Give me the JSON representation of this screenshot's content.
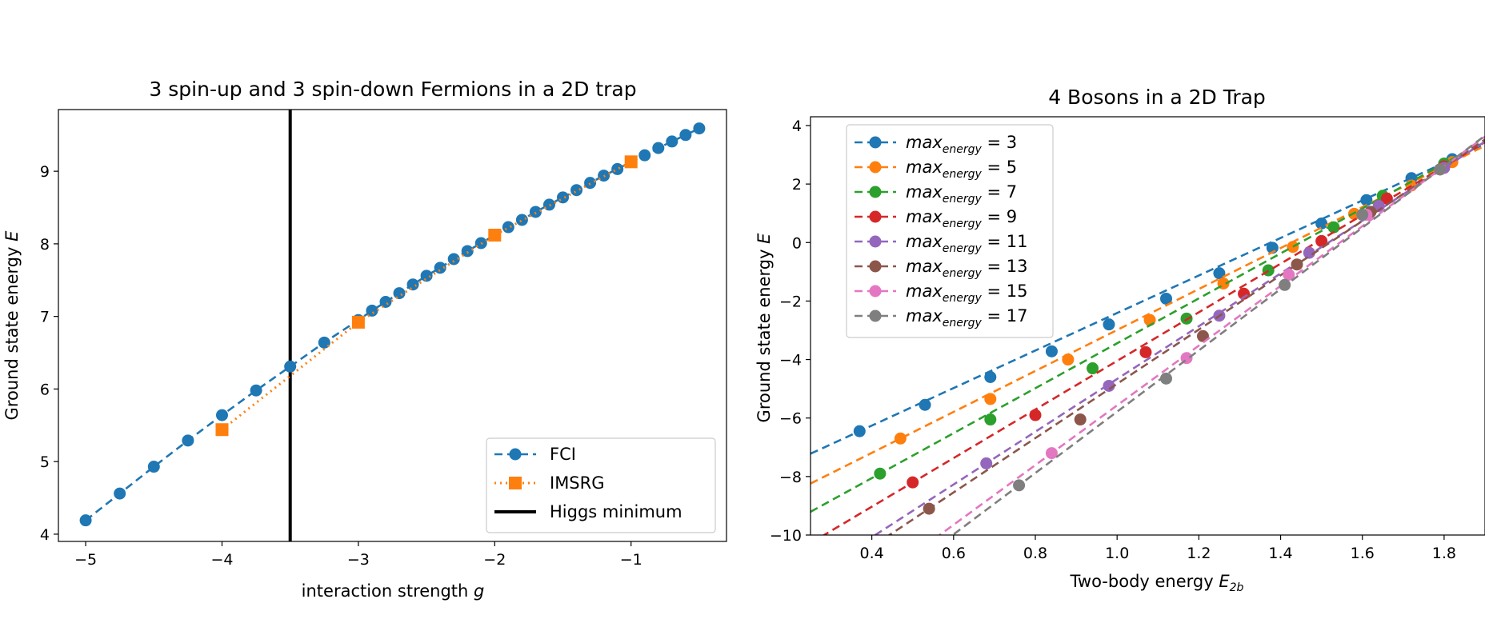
{
  "chart_data": [
    {
      "type": "line",
      "title": "3 spin-up and 3 spin-down Fermions in a 2D trap",
      "xlabel": "interaction strength ",
      "xlabel_var": "g",
      "ylabel": "Ground state energy ",
      "ylabel_var": "E",
      "xlim": [
        -5.2,
        -0.3
      ],
      "ylim": [
        3.9,
        9.85
      ],
      "xticks": [
        -5,
        -4,
        -3,
        -2,
        -1
      ],
      "xtick_labels": [
        "−5",
        "−4",
        "−3",
        "−2",
        "−1"
      ],
      "yticks": [
        4,
        5,
        6,
        7,
        8,
        9
      ],
      "ytick_labels": [
        "4",
        "5",
        "6",
        "7",
        "8",
        "9"
      ],
      "grid": false,
      "legend_position": "lower-right",
      "series": [
        {
          "name": "FCI",
          "color": "#1f77b4",
          "linestyle": "dashed",
          "marker": "circle",
          "x": [
            -5.0,
            -4.75,
            -4.5,
            -4.25,
            -4.0,
            -3.75,
            -3.5,
            -3.25,
            -3.0,
            -2.9,
            -2.8,
            -2.7,
            -2.6,
            -2.5,
            -2.4,
            -2.3,
            -2.2,
            -2.1,
            -2.0,
            -1.9,
            -1.8,
            -1.7,
            -1.6,
            -1.5,
            -1.4,
            -1.3,
            -1.2,
            -1.1,
            -1.0,
            -0.9,
            -0.8,
            -0.7,
            -0.6,
            -0.5
          ],
          "y": [
            4.19,
            4.56,
            4.93,
            5.29,
            5.64,
            5.98,
            6.31,
            6.64,
            6.95,
            7.08,
            7.2,
            7.32,
            7.44,
            7.56,
            7.67,
            7.79,
            7.9,
            8.01,
            8.12,
            8.23,
            8.33,
            8.44,
            8.54,
            8.64,
            8.74,
            8.84,
            8.94,
            9.03,
            9.13,
            9.22,
            9.32,
            9.41,
            9.5,
            9.59
          ]
        },
        {
          "name": "IMSRG",
          "color": "#ff7f0e",
          "linestyle": "dotted",
          "marker": "square",
          "x": [
            -4.0,
            -3.0,
            -2.0,
            -1.0
          ],
          "y": [
            5.44,
            6.92,
            8.12,
            9.13
          ]
        }
      ],
      "vline": {
        "name": "Higgs minimum",
        "x": -3.5,
        "color": "#000000"
      }
    },
    {
      "type": "line",
      "title": "4 Bosons in a 2D Trap",
      "xlabel": "Two-body energy ",
      "xlabel_var": "E",
      "xlabel_sub": "2b",
      "ylabel": "Ground state energy ",
      "ylabel_var": "E",
      "xlim": [
        0.25,
        1.9
      ],
      "ylim": [
        -10,
        4.3
      ],
      "xticks": [
        0.4,
        0.6,
        0.8,
        1.0,
        1.2,
        1.4,
        1.6,
        1.8
      ],
      "xtick_labels": [
        "0.4",
        "0.6",
        "0.8",
        "1.0",
        "1.2",
        "1.4",
        "1.6",
        "1.8"
      ],
      "yticks": [
        -10,
        -8,
        -6,
        -4,
        -2,
        0,
        2,
        4
      ],
      "ytick_labels": [
        "−10",
        "−8",
        "−6",
        "−4",
        "−2",
        "0",
        "2",
        "4"
      ],
      "grid": false,
      "legend_position": "upper-left",
      "legend_prefix": "max",
      "legend_sub": "energy",
      "series": [
        {
          "name": "max_energy = 3",
          "label_value": "3",
          "color": "#1f77b4",
          "x": [
            0.37,
            0.53,
            0.69,
            0.84,
            0.98,
            1.12,
            1.25,
            1.38,
            1.5,
            1.61,
            1.72,
            1.82
          ],
          "y": [
            -6.45,
            -5.55,
            -4.6,
            -3.72,
            -2.8,
            -1.92,
            -1.05,
            -0.18,
            0.65,
            1.45,
            2.2,
            2.85
          ]
        },
        {
          "name": "max_energy = 5",
          "label_value": "5",
          "color": "#ff7f0e",
          "x": [
            0.47,
            0.69,
            0.88,
            1.08,
            1.26,
            1.43,
            1.58,
            1.72,
            1.82
          ],
          "y": [
            -6.7,
            -5.35,
            -4.0,
            -2.65,
            -1.4,
            -0.15,
            0.98,
            1.95,
            2.75
          ]
        },
        {
          "name": "max_energy = 7",
          "label_value": "7",
          "color": "#2ca02c",
          "x": [
            0.42,
            0.69,
            0.94,
            1.17,
            1.37,
            1.53,
            1.65,
            1.8
          ],
          "y": [
            -7.9,
            -6.05,
            -4.3,
            -2.6,
            -0.95,
            0.52,
            1.6,
            2.7
          ]
        },
        {
          "name": "max_energy = 9",
          "label_value": "9",
          "color": "#d62728",
          "x": [
            0.5,
            0.8,
            1.07,
            1.31,
            1.5,
            1.66,
            1.8
          ],
          "y": [
            -8.2,
            -5.9,
            -3.75,
            -1.75,
            0.05,
            1.5,
            2.6
          ]
        },
        {
          "name": "max_energy = 11",
          "label_value": "11",
          "color": "#9467bd",
          "x": [
            0.68,
            0.98,
            1.25,
            1.47,
            1.64,
            1.8
          ],
          "y": [
            -7.55,
            -4.9,
            -2.5,
            -0.35,
            1.25,
            2.55
          ]
        },
        {
          "name": "max_energy = 13",
          "label_value": "13",
          "color": "#8c564b",
          "x": [
            0.54,
            0.91,
            1.21,
            1.44,
            1.62,
            1.79
          ],
          "y": [
            -9.1,
            -6.05,
            -3.2,
            -0.75,
            1.05,
            2.5
          ]
        },
        {
          "name": "max_energy = 15",
          "label_value": "15",
          "color": "#e377c2",
          "x": [
            0.84,
            1.17,
            1.42,
            1.61,
            1.79
          ],
          "y": [
            -7.2,
            -3.95,
            -1.1,
            0.95,
            2.5
          ]
        },
        {
          "name": "max_energy = 17",
          "label_value": "17",
          "color": "#7f7f7f",
          "x": [
            0.76,
            1.12,
            1.41,
            1.6,
            1.79
          ],
          "y": [
            -8.3,
            -4.65,
            -1.45,
            0.95,
            2.5
          ]
        }
      ]
    }
  ]
}
